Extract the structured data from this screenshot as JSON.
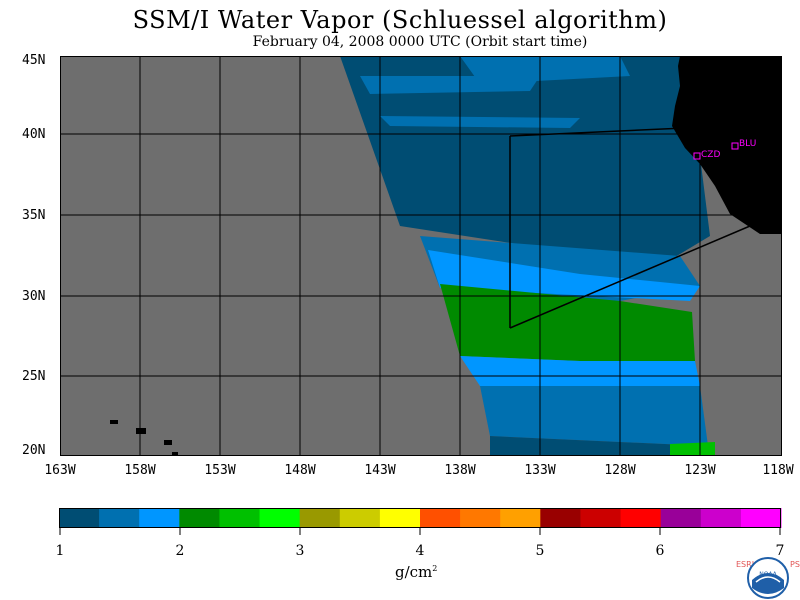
{
  "header": {
    "title": "SSM/I Water Vapor (Schluessel algorithm)",
    "subtitle": "February 04, 2008  0000 UTC  (Orbit start time)"
  },
  "map": {
    "lat_labels": [
      "45N",
      "40N",
      "35N",
      "30N",
      "25N",
      "20N"
    ],
    "lon_labels": [
      "163W",
      "158W",
      "153W",
      "148W",
      "143W",
      "138W",
      "133W",
      "128W",
      "123W",
      "118W"
    ],
    "stations": [
      {
        "name": "CZD"
      },
      {
        "name": "BLU"
      }
    ],
    "colors": {
      "no_data": "#6e6e6e",
      "land": "#000000",
      "station": "#ff00ff"
    }
  },
  "colorbar": {
    "colors": [
      "#004d73",
      "#0070b0",
      "#0096ff",
      "#008a00",
      "#00c000",
      "#00ff00",
      "#999900",
      "#cccc00",
      "#ffff00",
      "#ff5000",
      "#ff7800",
      "#ffa000",
      "#990000",
      "#cc0000",
      "#ff0000",
      "#990099",
      "#cc00cc",
      "#ff00ff"
    ],
    "ticks": [
      "1",
      "2",
      "3",
      "4",
      "5",
      "6",
      "7"
    ],
    "units_base": "g/cm",
    "units_exp": "2"
  },
  "credits": {
    "left_letters": "ESRL",
    "right_letters": "PSD",
    "logo_text": "NOAA"
  }
}
